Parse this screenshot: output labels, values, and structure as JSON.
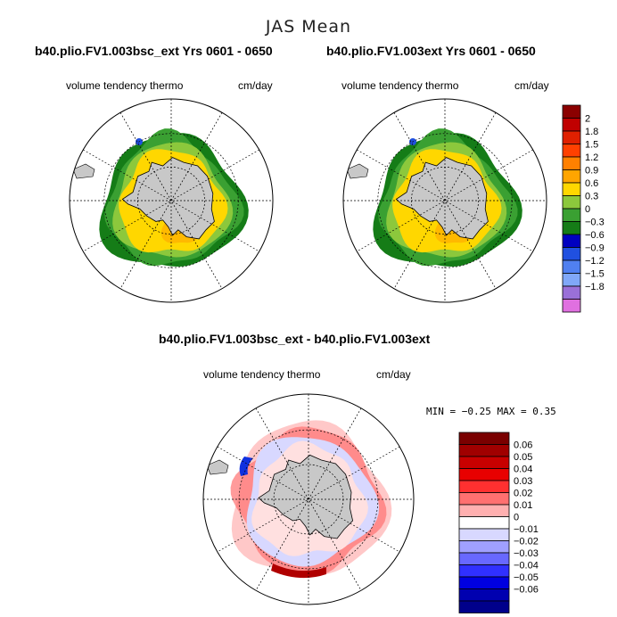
{
  "figure_title": "JAS Mean",
  "colors": {
    "ice": "#c8c8c8",
    "grid": "#000000",
    "yellow": "#ffd700",
    "green": "#3aa032",
    "light_green": "#8cc83c",
    "dark_green": "#157c17"
  },
  "chart_data": [
    {
      "type": "polar-stereographic contour map",
      "title": "b40.plio.FV1.003bsc_ext  Yrs 0601 - 0650",
      "left_label": "volume tendency thermo",
      "right_label": "cm/day",
      "field_pattern": "mostly 0.3 to 1.2 in sea-ice zone, 0 to -0.6 at outer edge",
      "colorbar": {
        "labels": [
          "2",
          "1.8",
          "1.5",
          "1.2",
          "0.9",
          "0.6",
          "0.3",
          "0",
          "−0.3",
          "−0.6",
          "−0.9",
          "−1.2",
          "−1.5",
          "−1.8"
        ],
        "colors": [
          "#8b0000",
          "#c00000",
          "#e02000",
          "#ff4000",
          "#ff8000",
          "#ffa500",
          "#ffd700",
          "#8cc83c",
          "#3aa032",
          "#157c17",
          "#0000c0",
          "#2050e0",
          "#5080f0",
          "#80a8f8",
          "#9a70d8",
          "#e070e0"
        ]
      }
    },
    {
      "type": "polar-stereographic contour map",
      "title": "b40.plio.FV1.003ext  Yrs 0601 - 0650",
      "left_label": "volume tendency thermo",
      "right_label": "cm/day",
      "field_pattern": "same as left panel"
    },
    {
      "type": "polar-stereographic difference map",
      "title": "b40.plio.FV1.003bsc_ext - b40.plio.FV1.003ext",
      "left_label": "volume tendency thermo",
      "right_label": "cm/day",
      "stats": {
        "min_label": "MIN =",
        "min": "−0.25",
        "max_label": "MAX =",
        "max": "0.35"
      },
      "colorbar": {
        "labels": [
          "0.06",
          "0.05",
          "0.04",
          "0.03",
          "0.02",
          "0.01",
          "0",
          "−0.01",
          "−0.02",
          "−0.03",
          "−0.04",
          "−0.05",
          "−0.06"
        ],
        "colors": [
          "#7a0000",
          "#a00000",
          "#c80000",
          "#e80000",
          "#ff3030",
          "#ff7070",
          "#ffb0b0",
          "#ffffff",
          "#d8d8ff",
          "#a0a0ff",
          "#6868ff",
          "#3030ff",
          "#0000e0",
          "#0000b0",
          "#00008b"
        ]
      }
    }
  ]
}
